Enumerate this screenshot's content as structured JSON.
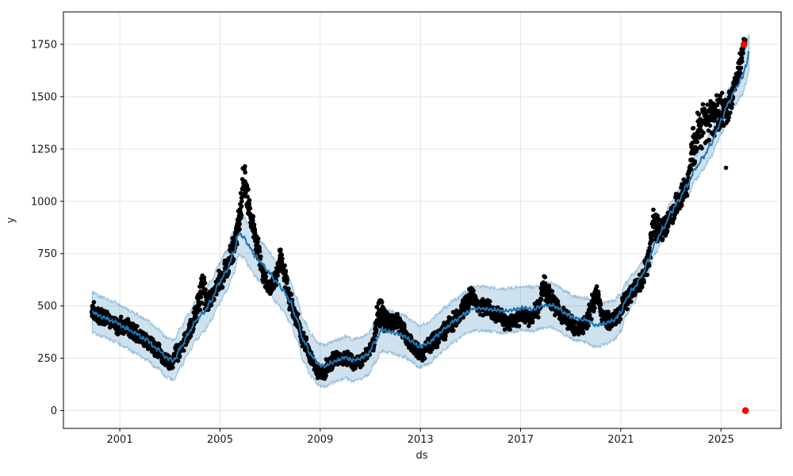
{
  "chart_data": {
    "type": "scatter",
    "subtype": "prophet-forecast",
    "title": "",
    "xlabel": "ds",
    "ylabel": "y",
    "grid": true,
    "legend": "none",
    "xlim_years": [
      1998.75,
      2027.4
    ],
    "ylim": [
      -85,
      1905
    ],
    "x_ticks": [
      {
        "label": "2001",
        "year": 2001
      },
      {
        "label": "2005",
        "year": 2005
      },
      {
        "label": "2009",
        "year": 2009
      },
      {
        "label": "2013",
        "year": 2013
      },
      {
        "label": "2017",
        "year": 2017
      },
      {
        "label": "2021",
        "year": 2021
      },
      {
        "label": "2025",
        "year": 2025
      }
    ],
    "y_ticks": [
      {
        "label": "0",
        "value": 0
      },
      {
        "label": "250",
        "value": 250
      },
      {
        "label": "500",
        "value": 500
      },
      {
        "label": "750",
        "value": 750
      },
      {
        "label": "1000",
        "value": 1000
      },
      {
        "label": "1250",
        "value": 1250
      },
      {
        "label": "1500",
        "value": 1500
      },
      {
        "label": "1750",
        "value": 1750
      }
    ],
    "colors": {
      "trend_line": "#1f77b4",
      "band_fill": "#1f77b4",
      "band_alpha": 0.22,
      "band_edge_alpha": 0.38,
      "scatter": "#000000",
      "anomaly": "#ff0000",
      "grid": "#e4e4e4",
      "spine": "#000000",
      "tick_text": "#1a1a1a"
    },
    "trend": [
      [
        1999.9,
        470,
        95
      ],
      [
        2000.3,
        448,
        95
      ],
      [
        2000.8,
        424,
        95
      ],
      [
        2001.2,
        396,
        95
      ],
      [
        2001.6,
        372,
        95
      ],
      [
        2002.0,
        342,
        95
      ],
      [
        2002.5,
        296,
        95
      ],
      [
        2002.9,
        252,
        95
      ],
      [
        2003.15,
        240,
        95
      ],
      [
        2003.45,
        305,
        95
      ],
      [
        2003.75,
        370,
        95
      ],
      [
        2004.05,
        432,
        95
      ],
      [
        2004.35,
        470,
        95
      ],
      [
        2004.65,
        525,
        95
      ],
      [
        2004.95,
        605,
        95
      ],
      [
        2005.25,
        665,
        95
      ],
      [
        2005.55,
        755,
        100
      ],
      [
        2005.75,
        845,
        100
      ],
      [
        2005.95,
        830,
        100
      ],
      [
        2006.15,
        788,
        100
      ],
      [
        2006.4,
        742,
        100
      ],
      [
        2006.65,
        705,
        100
      ],
      [
        2006.95,
        662,
        100
      ],
      [
        2007.25,
        615,
        100
      ],
      [
        2007.55,
        572,
        100
      ],
      [
        2007.8,
        520,
        100
      ],
      [
        2008.05,
        440,
        100
      ],
      [
        2008.35,
        330,
        100
      ],
      [
        2008.65,
        262,
        100
      ],
      [
        2008.95,
        222,
        100
      ],
      [
        2009.2,
        212,
        100
      ],
      [
        2009.45,
        230,
        100
      ],
      [
        2009.75,
        242,
        100
      ],
      [
        2010.0,
        255,
        100
      ],
      [
        2010.3,
        240,
        100
      ],
      [
        2010.6,
        250,
        100
      ],
      [
        2010.9,
        268,
        100
      ],
      [
        2011.2,
        330,
        100
      ],
      [
        2011.45,
        385,
        100
      ],
      [
        2011.75,
        378,
        100
      ],
      [
        2012.05,
        368,
        100
      ],
      [
        2012.35,
        356,
        100
      ],
      [
        2012.65,
        332,
        100
      ],
      [
        2012.95,
        306,
        100
      ],
      [
        2013.3,
        320,
        100
      ],
      [
        2013.7,
        362,
        100
      ],
      [
        2014.0,
        396,
        100
      ],
      [
        2014.4,
        432,
        100
      ],
      [
        2014.8,
        466,
        100
      ],
      [
        2015.1,
        486,
        105
      ],
      [
        2015.5,
        488,
        105
      ],
      [
        2015.9,
        482,
        105
      ],
      [
        2016.3,
        476,
        105
      ],
      [
        2016.7,
        482,
        105
      ],
      [
        2017.1,
        490,
        105
      ],
      [
        2017.5,
        485,
        105
      ],
      [
        2017.9,
        500,
        105
      ],
      [
        2018.2,
        505,
        105
      ],
      [
        2018.5,
        490,
        105
      ],
      [
        2018.8,
        462,
        105
      ],
      [
        2019.2,
        440,
        105
      ],
      [
        2019.6,
        432,
        105
      ],
      [
        2020.0,
        408,
        105
      ],
      [
        2020.35,
        416,
        100
      ],
      [
        2020.7,
        430,
        95
      ],
      [
        2021.0,
        468,
        90
      ],
      [
        2021.2,
        530,
        80
      ],
      [
        2021.5,
        582,
        70
      ],
      [
        2021.85,
        646,
        62
      ],
      [
        2022.1,
        720,
        56
      ],
      [
        2022.4,
        806,
        52
      ],
      [
        2022.7,
        872,
        50
      ],
      [
        2023.0,
        946,
        50
      ],
      [
        2023.3,
        1002,
        50
      ],
      [
        2023.65,
        1076,
        52
      ],
      [
        2024.0,
        1160,
        55
      ],
      [
        2024.3,
        1212,
        58
      ],
      [
        2024.6,
        1272,
        60
      ],
      [
        2024.85,
        1342,
        62
      ],
      [
        2025.0,
        1386,
        65
      ],
      [
        2025.3,
        1470,
        68
      ],
      [
        2025.6,
        1540,
        74
      ],
      [
        2025.85,
        1592,
        80
      ],
      [
        2026.0,
        1650,
        86
      ],
      [
        2026.12,
        1708,
        90
      ]
    ],
    "actuals_profile": [
      [
        1999.9,
        478,
        45
      ],
      [
        2000.25,
        450,
        45
      ],
      [
        2000.6,
        430,
        42
      ],
      [
        2000.95,
        400,
        42
      ],
      [
        2001.25,
        420,
        58
      ],
      [
        2001.55,
        372,
        46
      ],
      [
        2001.9,
        346,
        42
      ],
      [
        2002.2,
        318,
        40
      ],
      [
        2002.5,
        285,
        40
      ],
      [
        2002.8,
        243,
        38
      ],
      [
        2003.05,
        222,
        38
      ],
      [
        2003.3,
        280,
        46
      ],
      [
        2003.6,
        332,
        46
      ],
      [
        2003.85,
        398,
        48
      ],
      [
        2004.1,
        500,
        72
      ],
      [
        2004.3,
        590,
        92
      ],
      [
        2004.5,
        508,
        56
      ],
      [
        2004.75,
        560,
        56
      ],
      [
        2005.0,
        622,
        56
      ],
      [
        2005.25,
        682,
        58
      ],
      [
        2005.5,
        768,
        66
      ],
      [
        2005.75,
        905,
        92
      ],
      [
        2005.95,
        1090,
        105
      ],
      [
        2006.1,
        1000,
        92
      ],
      [
        2006.3,
        892,
        82
      ],
      [
        2006.5,
        782,
        72
      ],
      [
        2006.7,
        652,
        62
      ],
      [
        2006.95,
        582,
        52
      ],
      [
        2007.2,
        622,
        56
      ],
      [
        2007.4,
        730,
        82
      ],
      [
        2007.6,
        642,
        72
      ],
      [
        2007.8,
        512,
        56
      ],
      [
        2008.05,
        432,
        52
      ],
      [
        2008.3,
        346,
        46
      ],
      [
        2008.6,
        266,
        46
      ],
      [
        2008.85,
        196,
        46
      ],
      [
        2009.1,
        182,
        46
      ],
      [
        2009.35,
        222,
        42
      ],
      [
        2009.6,
        250,
        40
      ],
      [
        2009.85,
        240,
        38
      ],
      [
        2010.1,
        255,
        38
      ],
      [
        2010.35,
        228,
        36
      ],
      [
        2010.6,
        240,
        36
      ],
      [
        2010.85,
        266,
        38
      ],
      [
        2011.1,
        320,
        46
      ],
      [
        2011.35,
        470,
        95
      ],
      [
        2011.55,
        430,
        72
      ],
      [
        2011.8,
        416,
        46
      ],
      [
        2012.05,
        440,
        52
      ],
      [
        2012.3,
        386,
        46
      ],
      [
        2012.55,
        330,
        44
      ],
      [
        2012.8,
        296,
        42
      ],
      [
        2013.05,
        270,
        40
      ],
      [
        2013.3,
        306,
        42
      ],
      [
        2013.6,
        336,
        44
      ],
      [
        2013.9,
        376,
        46
      ],
      [
        2014.2,
        416,
        46
      ],
      [
        2014.5,
        446,
        46
      ],
      [
        2014.8,
        506,
        56
      ],
      [
        2015.05,
        545,
        52
      ],
      [
        2015.3,
        500,
        46
      ],
      [
        2015.55,
        498,
        44
      ],
      [
        2015.8,
        480,
        44
      ],
      [
        2016.1,
        458,
        42
      ],
      [
        2016.45,
        418,
        40
      ],
      [
        2016.8,
        432,
        42
      ],
      [
        2017.1,
        452,
        44
      ],
      [
        2017.4,
        442,
        44
      ],
      [
        2017.7,
        486,
        52
      ],
      [
        2017.95,
        600,
        78
      ],
      [
        2018.15,
        545,
        62
      ],
      [
        2018.4,
        496,
        50
      ],
      [
        2018.7,
        456,
        46
      ],
      [
        2019.0,
        420,
        46
      ],
      [
        2019.3,
        386,
        46
      ],
      [
        2019.6,
        416,
        46
      ],
      [
        2019.85,
        496,
        62
      ],
      [
        2020.05,
        550,
        58
      ],
      [
        2020.3,
        450,
        50
      ],
      [
        2020.6,
        426,
        44
      ],
      [
        2020.9,
        456,
        46
      ],
      [
        2021.15,
        520,
        50
      ],
      [
        2021.45,
        565,
        50
      ],
      [
        2021.75,
        615,
        52
      ],
      [
        2022.05,
        700,
        62
      ],
      [
        2022.3,
        890,
        82
      ],
      [
        2022.55,
        860,
        68
      ],
      [
        2022.8,
        880,
        62
      ],
      [
        2023.05,
        945,
        62
      ],
      [
        2023.3,
        1000,
        62
      ],
      [
        2023.6,
        1070,
        68
      ],
      [
        2023.9,
        1250,
        120
      ],
      [
        2024.15,
        1360,
        120
      ],
      [
        2024.45,
        1380,
        110
      ],
      [
        2024.7,
        1400,
        100
      ],
      [
        2024.95,
        1430,
        92
      ],
      [
        2025.15,
        1440,
        86
      ],
      [
        2025.4,
        1485,
        72
      ],
      [
        2025.6,
        1580,
        62
      ],
      [
        2025.78,
        1660,
        58
      ],
      [
        2025.92,
        1748,
        48
      ]
    ],
    "extra_points": [
      {
        "year": 2025.2,
        "value": 1160
      }
    ],
    "anomalies": [
      {
        "year": 2025.92,
        "value": 1750
      },
      {
        "year": 2025.98,
        "value": 0
      }
    ],
    "scatter_start": 1999.88,
    "scatter_end": 2025.97,
    "scatter_step_years": 0.008,
    "line_step_years": 0.02
  }
}
